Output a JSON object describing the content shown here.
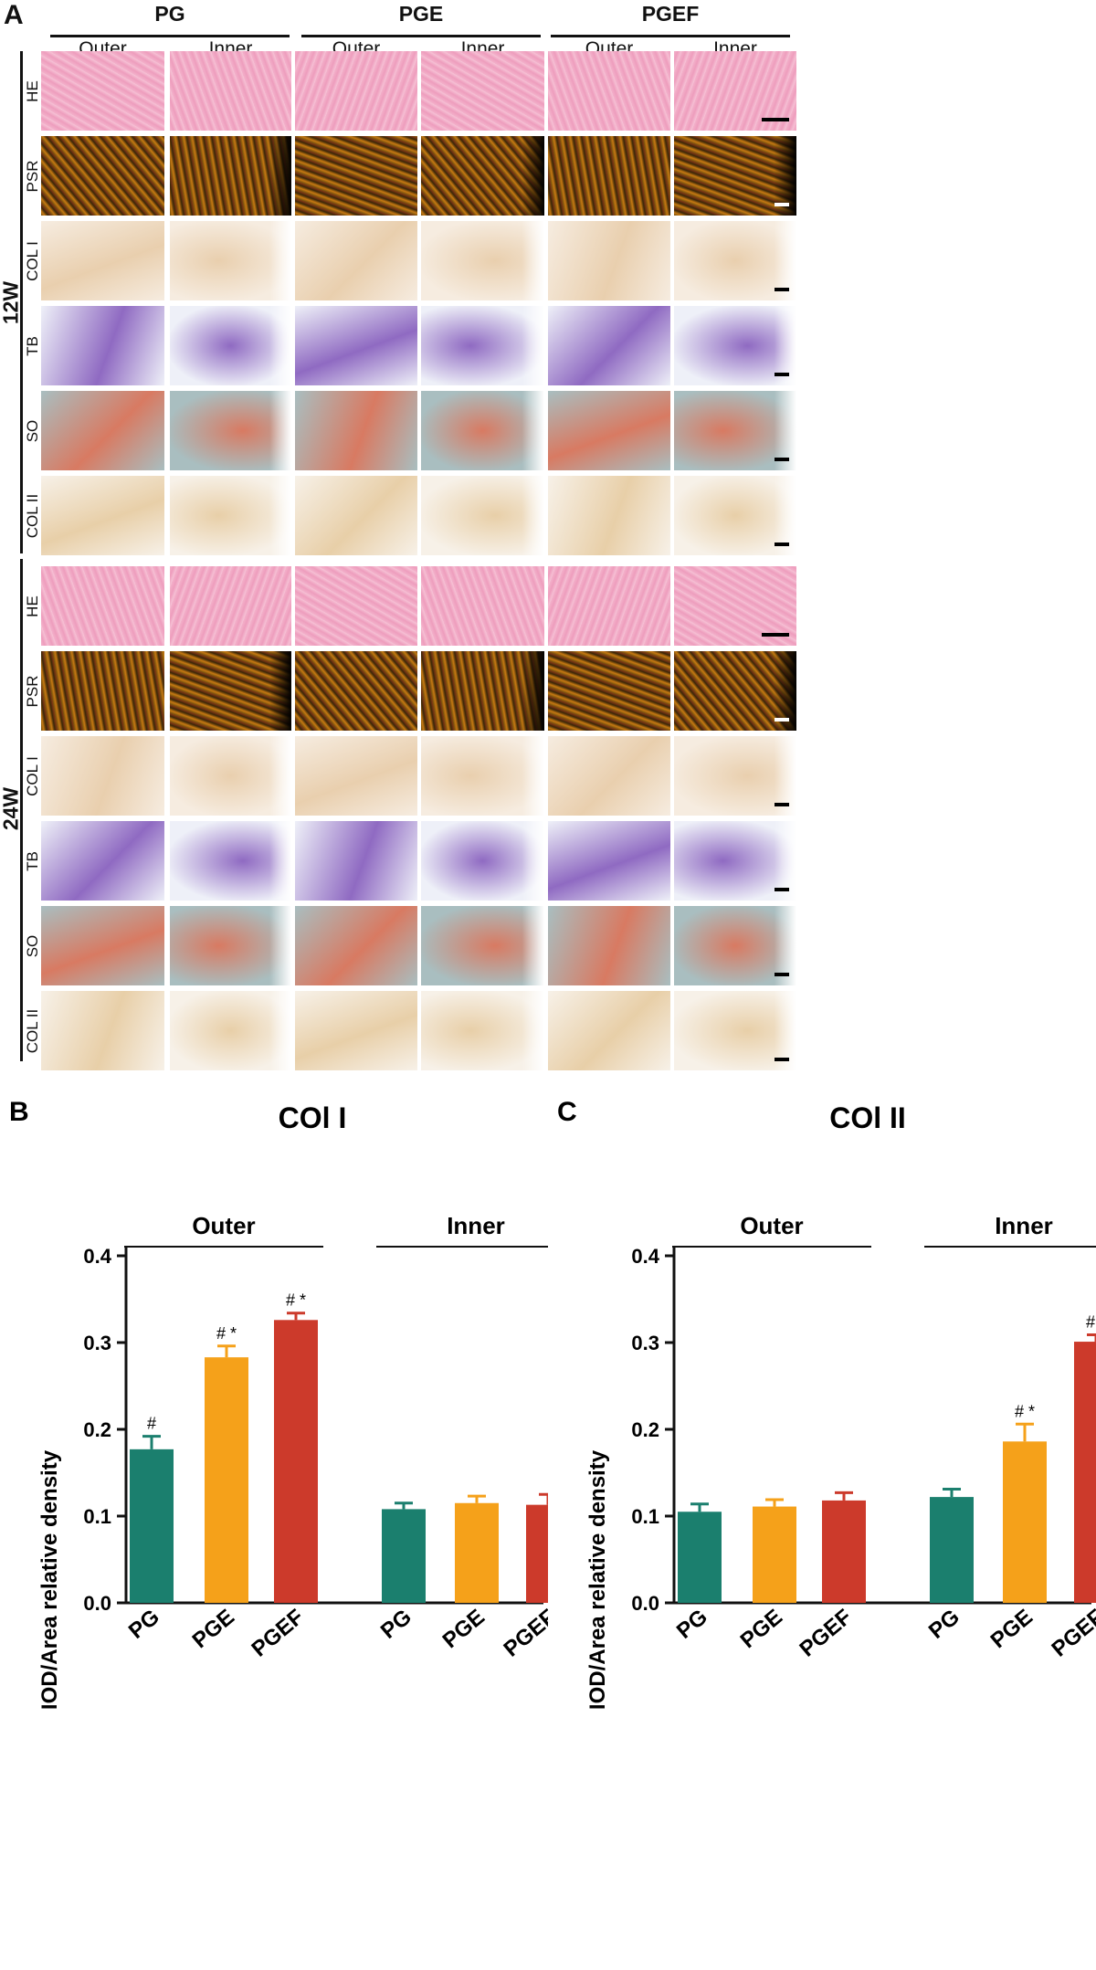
{
  "panel_a": {
    "letter": "A",
    "groups": [
      {
        "title": "PG",
        "cols": [
          "Outer",
          "Inner"
        ]
      },
      {
        "title": "PGE",
        "cols": [
          "Outer",
          "Inner"
        ]
      },
      {
        "title": "PGEF",
        "cols": [
          "Outer",
          "Inner"
        ]
      }
    ],
    "timepoints": [
      {
        "label": "12W",
        "rows": [
          "HE",
          "PSR",
          "COL I",
          "TB",
          "SO",
          "COL II"
        ]
      },
      {
        "label": "24W",
        "rows": [
          "HE",
          "PSR",
          "COL I",
          "TB",
          "SO",
          "COL II"
        ]
      }
    ]
  },
  "stain_colors": {
    "HE": "#eea6c2",
    "PSR": "#6a4a10",
    "COL I": "#f3e6d6",
    "TB": "#e3e4f2",
    "SO": "#9fb3b6",
    "COL II": "#f3ebe0"
  },
  "chart_data": [
    {
      "panel_letter": "B",
      "type": "bar",
      "title": "COl I",
      "ylabel": "IOD/Area relative density",
      "ylim": [
        0,
        0.4
      ],
      "yticks": [
        "0.0",
        "0.1",
        "0.2",
        "0.3",
        "0.4"
      ],
      "group_labels": [
        "Outer",
        "Inner"
      ],
      "categories": [
        "PG",
        "PGE",
        "PGEF",
        "PG",
        "PGE",
        "PGEF"
      ],
      "values": [
        0.177,
        0.283,
        0.326,
        0.108,
        0.115,
        0.113
      ],
      "errors": [
        0.015,
        0.013,
        0.008,
        0.007,
        0.008,
        0.012
      ],
      "annotations": [
        "#",
        "# *",
        "# *",
        "",
        "",
        ""
      ],
      "colors": [
        "#1b7f6e",
        "#f5a11a",
        "#cc3a2b",
        "#1b7f6e",
        "#f5a11a",
        "#cc3a2b"
      ]
    },
    {
      "panel_letter": "C",
      "type": "bar",
      "title": "COl II",
      "ylabel": "IOD/Area relative density",
      "ylim": [
        0,
        0.4
      ],
      "yticks": [
        "0.0",
        "0.1",
        "0.2",
        "0.3",
        "0.4"
      ],
      "group_labels": [
        "Outer",
        "Inner"
      ],
      "categories": [
        "PG",
        "PGE",
        "PGEF",
        "PG",
        "PGE",
        "PGEF"
      ],
      "values": [
        0.105,
        0.111,
        0.118,
        0.122,
        0.186,
        0.301
      ],
      "errors": [
        0.009,
        0.008,
        0.009,
        0.009,
        0.02,
        0.008
      ],
      "annotations": [
        "",
        "",
        "",
        "",
        "# *",
        "# *"
      ],
      "colors": [
        "#1b7f6e",
        "#f5a11a",
        "#cc3a2b",
        "#1b7f6e",
        "#f5a11a",
        "#cc3a2b"
      ]
    }
  ]
}
